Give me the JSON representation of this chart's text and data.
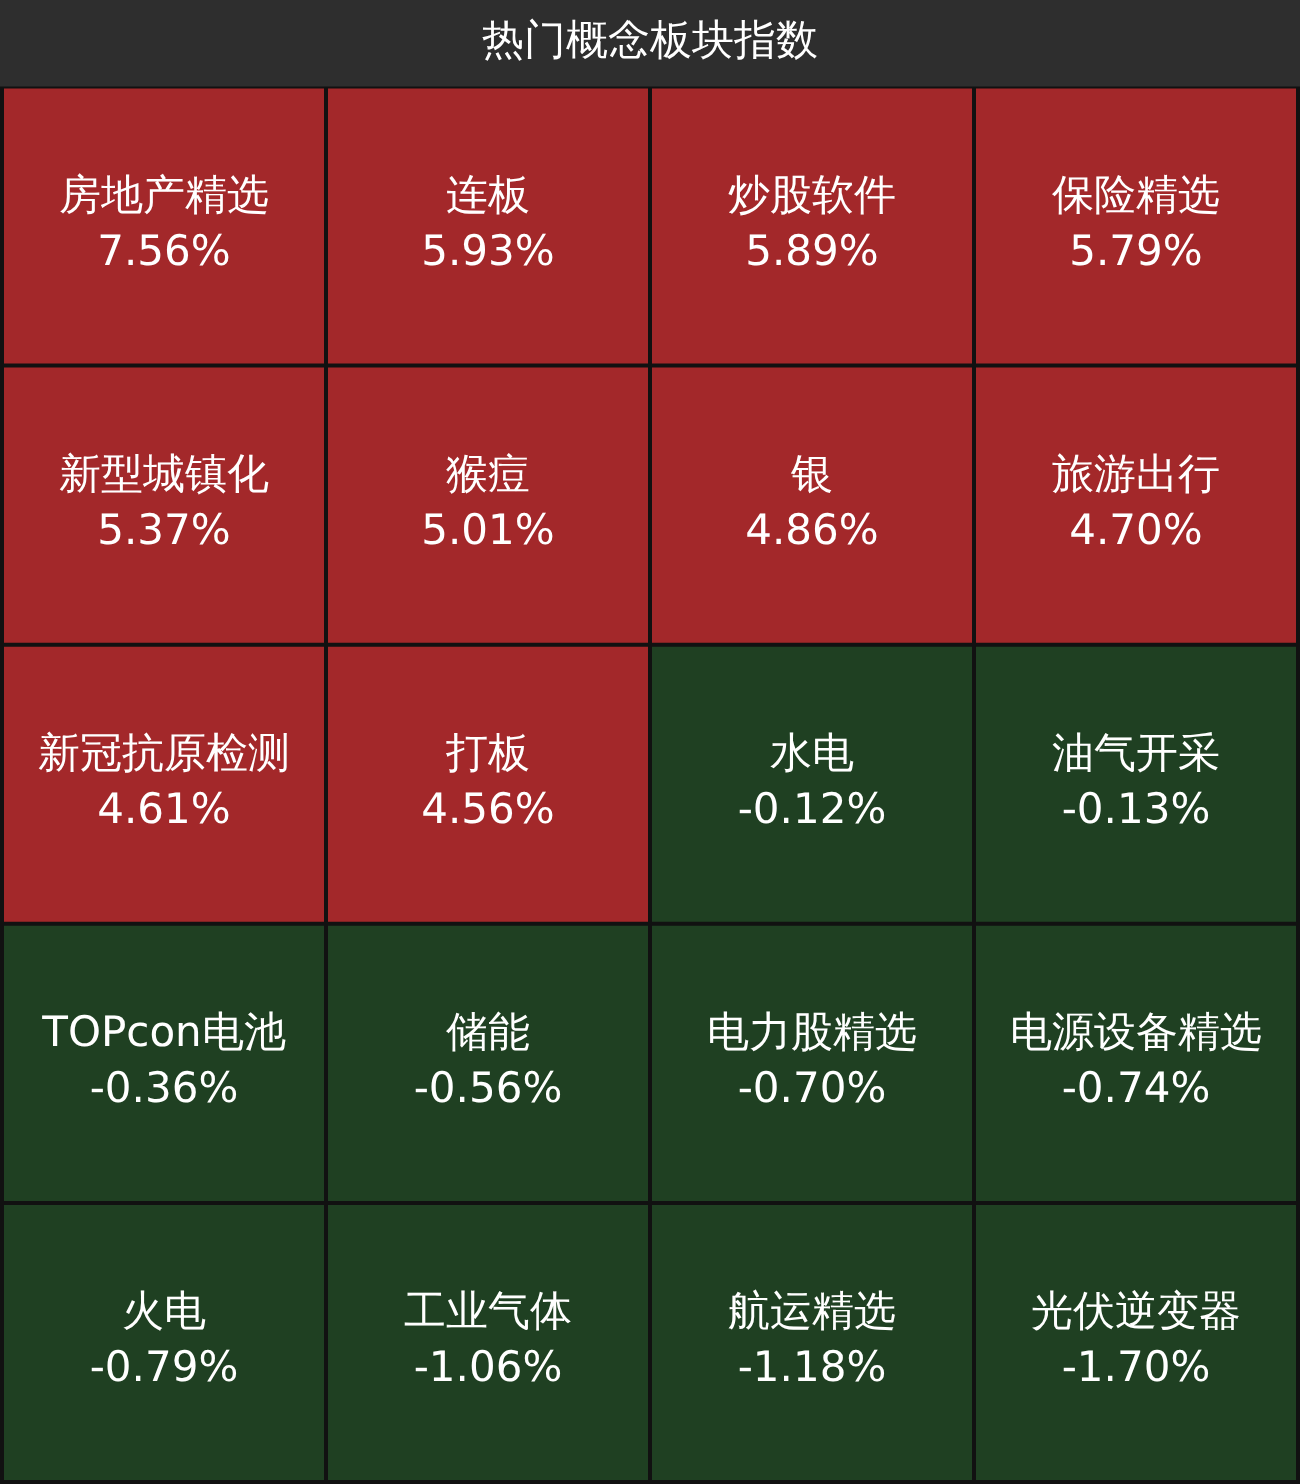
{
  "chart_data": {
    "type": "other",
    "title": "热门概念板块指数",
    "categories": [
      "房地产精选",
      "连板",
      "炒股软件",
      "保险精选",
      "新型城镇化",
      "猴痘",
      "银",
      "旅游出行",
      "新冠抗原检测",
      "打板",
      "水电",
      "油气开采",
      "TOPcon电池",
      "储能",
      "电力股精选",
      "电源设备精选",
      "火电",
      "工业气体",
      "航运精选",
      "光伏逆变器"
    ],
    "values": [
      7.56,
      5.93,
      5.89,
      5.79,
      5.37,
      5.01,
      4.86,
      4.7,
      4.61,
      4.56,
      -0.12,
      -0.13,
      -0.36,
      -0.56,
      -0.7,
      -0.74,
      -0.79,
      -1.06,
      -1.18,
      -1.7
    ],
    "value_labels": [
      "7.56%",
      "5.93%",
      "5.89%",
      "5.79%",
      "5.37%",
      "5.01%",
      "4.86%",
      "4.70%",
      "4.61%",
      "4.56%",
      "-0.12%",
      "-0.13%",
      "-0.36%",
      "-0.56%",
      "-0.70%",
      "-0.74%",
      "-0.79%",
      "-1.06%",
      "-1.18%",
      "-1.70%"
    ],
    "colors": [
      "#a3282a",
      "#a3282a",
      "#a3282a",
      "#a3282a",
      "#a3282a",
      "#a3282a",
      "#a3282a",
      "#a3282a",
      "#a3282a",
      "#a3282a",
      "#1f4022",
      "#1f4022",
      "#1f4022",
      "#1f4022",
      "#1f4022",
      "#1f4022",
      "#1f4022",
      "#1f4022",
      "#1f4022",
      "#1f4022"
    ]
  }
}
